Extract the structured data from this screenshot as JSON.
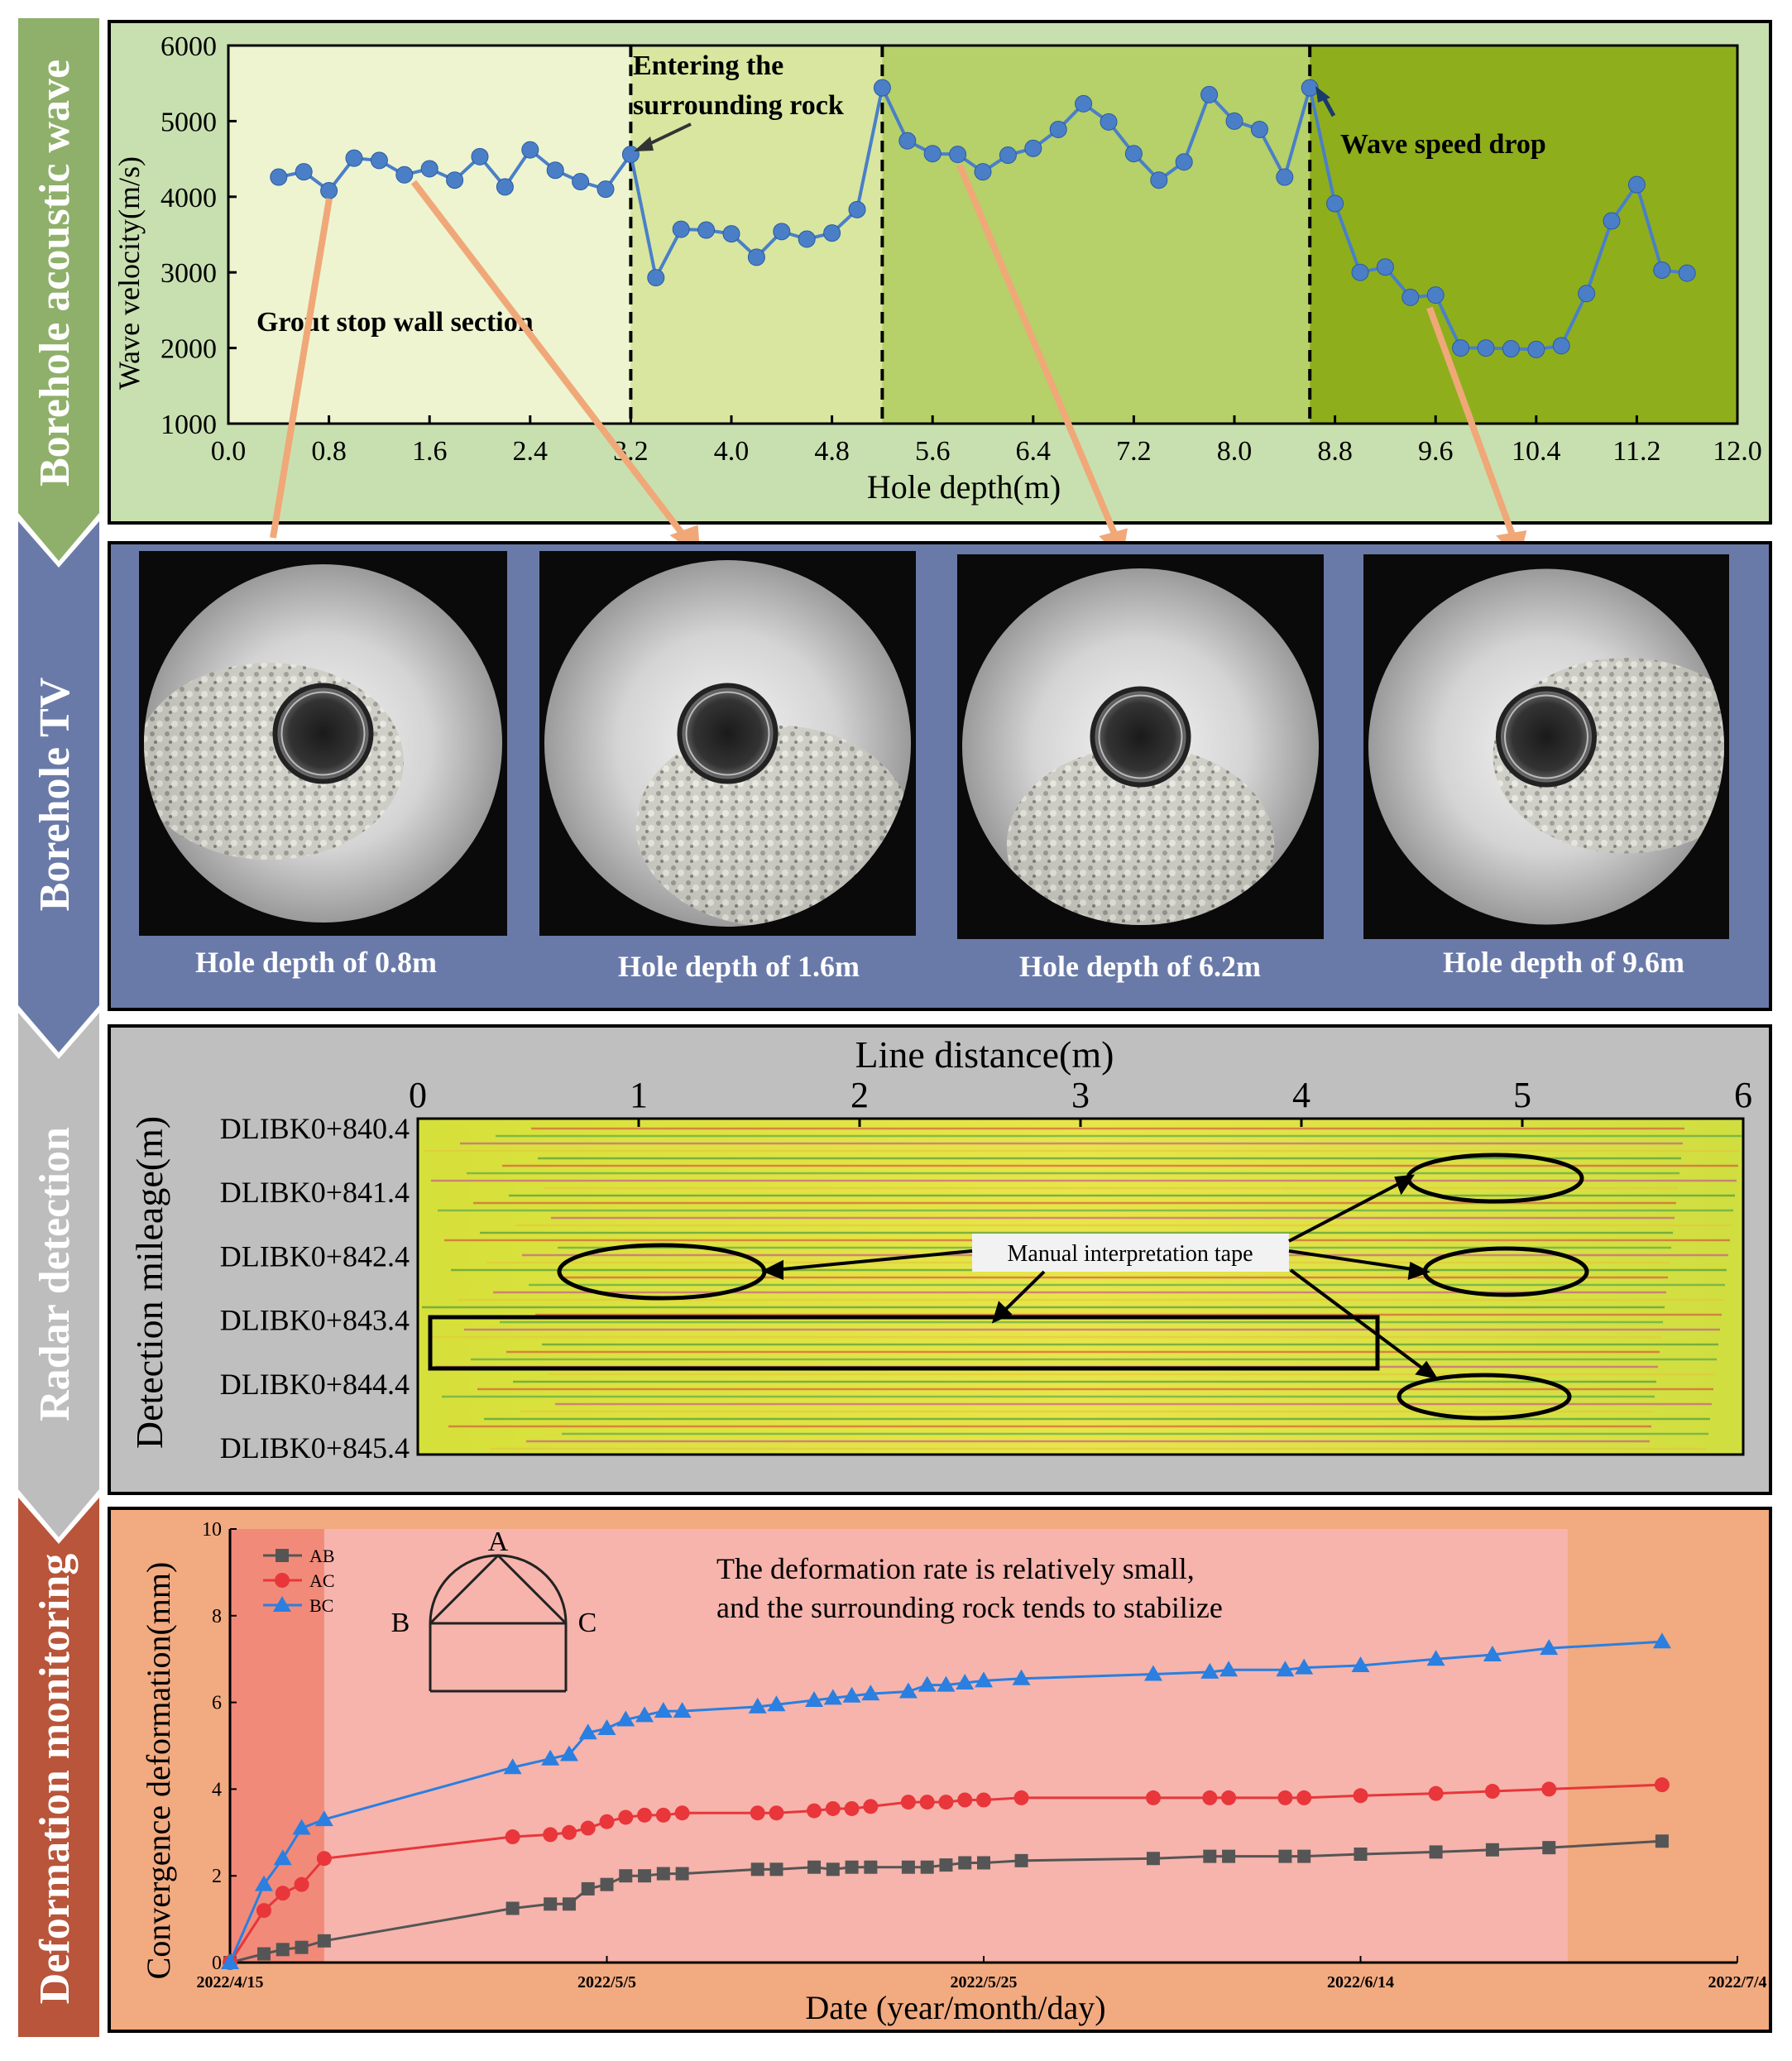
{
  "sections": {
    "s1": {
      "label": "Borehole acoustic wave",
      "color": "#8fb06a"
    },
    "s2": {
      "label": "Borehole TV",
      "color": "#6a7aa8"
    },
    "s3": {
      "label": "Radar detection",
      "color": "#bdbdbd"
    },
    "s4": {
      "label": "Deformation monitoring",
      "color": "#b8553a"
    }
  },
  "acoustic": {
    "ylabel": "Wave velocity(m/s)",
    "xlabel": "Hole depth(m)",
    "annotations": {
      "grout": "Grout stop wall section",
      "entering_1": "Entering the",
      "entering_2": "surrounding rock",
      "drop": "Wave speed drop"
    }
  },
  "tv": {
    "captions": [
      "Hole depth of 0.8m",
      "Hole depth of 1.6m",
      "Hole depth of 6.2m",
      "Hole depth of 9.6m"
    ]
  },
  "radar": {
    "title": "Line distance(m)",
    "ylabel": "Detection mileage(m)",
    "xticks": [
      "0",
      "1",
      "2",
      "3",
      "4",
      "5",
      "6"
    ],
    "yticks": [
      "DLIBK0+840.4",
      "DLIBK0+841.4",
      "DLIBK0+842.4",
      "DLIBK0+843.4",
      "DLIBK0+844.4",
      "DLIBK0+845.4"
    ],
    "callout": "Manual interpretation tape"
  },
  "deformation": {
    "ylabel": "Convergence deformation(mm)",
    "xlabel": "Date (year/month/day)",
    "note_1": "The deformation rate is relatively small,",
    "note_2": "and the surrounding rock tends to stabilize",
    "diagram": {
      "A": "A",
      "B": "B",
      "C": "C"
    }
  },
  "chart_data": [
    {
      "type": "line",
      "title": "Borehole acoustic wave",
      "xlabel": "Hole depth(m)",
      "ylabel": "Wave velocity(m/s)",
      "xlim": [
        0,
        12
      ],
      "ylim": [
        1000,
        6000
      ],
      "xticks": [
        "0.0",
        "0.8",
        "1.6",
        "2.4",
        "3.2",
        "4.0",
        "4.8",
        "5.6",
        "6.4",
        "7.2",
        "8.0",
        "8.8",
        "9.6",
        "10.4",
        "11.2",
        "12.0"
      ],
      "yticks": [
        "1000",
        "2000",
        "3000",
        "4000",
        "5000",
        "6000"
      ],
      "zones": [
        {
          "x0": 0.0,
          "x1": 3.2,
          "color": "#eef4d0"
        },
        {
          "x0": 3.2,
          "x1": 5.2,
          "color": "#d8e6a0"
        },
        {
          "x0": 5.2,
          "x1": 8.6,
          "color": "#b6d06a"
        },
        {
          "x0": 8.6,
          "x1": 12.0,
          "color": "#8fae1c"
        }
      ],
      "dividers": [
        3.2,
        5.2,
        8.6
      ],
      "series": [
        {
          "name": "Wave velocity",
          "color": "#4a7fc8",
          "x": [
            0.4,
            0.6,
            0.8,
            1.0,
            1.2,
            1.4,
            1.6,
            1.8,
            2.0,
            2.2,
            2.4,
            2.6,
            2.8,
            3.0,
            3.2,
            3.4,
            3.6,
            3.8,
            4.0,
            4.2,
            4.4,
            4.6,
            4.8,
            5.0,
            5.2,
            5.4,
            5.6,
            5.8,
            6.0,
            6.2,
            6.4,
            6.6,
            6.8,
            7.0,
            7.2,
            7.4,
            7.6,
            7.8,
            8.0,
            8.2,
            8.4,
            8.6,
            8.8,
            9.0,
            9.2,
            9.4,
            9.6,
            9.8,
            10.0,
            10.2,
            10.4,
            10.6,
            10.8,
            11.0,
            11.2,
            11.4,
            11.6
          ],
          "y": [
            4260,
            4330,
            4080,
            4510,
            4480,
            4290,
            4370,
            4220,
            4530,
            4130,
            4620,
            4350,
            4200,
            4100,
            4560,
            2930,
            3570,
            3560,
            3510,
            3200,
            3540,
            3440,
            3520,
            3830,
            5440,
            4740,
            4570,
            4560,
            4330,
            4550,
            4640,
            4890,
            5230,
            4990,
            4570,
            4220,
            4460,
            5350,
            5000,
            4890,
            4260,
            5440,
            3910,
            3000,
            3070,
            2670,
            2700,
            2000,
            2000,
            1990,
            1980,
            2030,
            2720,
            3680,
            4160,
            3030,
            2990
          ]
        }
      ]
    },
    {
      "type": "heatmap",
      "title": "Line distance(m)",
      "ylabel": "Detection mileage(m)",
      "xlim": [
        0,
        6
      ],
      "xticks": [
        "0",
        "1",
        "2",
        "3",
        "4",
        "5",
        "6"
      ],
      "yticks": [
        "DLIBK0+840.4",
        "DLIBK0+841.4",
        "DLIBK0+842.4",
        "DLIBK0+843.4",
        "DLIBK0+844.4",
        "DLIBK0+845.4"
      ],
      "annotations": [
        "Manual interpretation tape"
      ]
    },
    {
      "type": "line",
      "title": "Deformation monitoring",
      "xlabel": "Date (year/month/day)",
      "ylabel": "Convergence deformation(mm)",
      "xlim": [
        0,
        80
      ],
      "ylim": [
        0,
        10
      ],
      "xticks": [
        "2022/4/15",
        "2022/5/5",
        "2022/5/25",
        "2022/6/14",
        "2022/7/4"
      ],
      "xtick_days": [
        0,
        20,
        40,
        60,
        80
      ],
      "yticks": [
        "0",
        "2",
        "4",
        "6",
        "8",
        "10"
      ],
      "highlight_days": [
        0,
        5
      ],
      "series": [
        {
          "name": "AB",
          "color": "#555555",
          "marker": "square",
          "x": [
            0,
            1.8,
            2.8,
            3.8,
            5,
            15,
            17,
            18,
            19,
            20,
            21,
            22,
            23,
            24,
            28,
            29,
            31,
            32,
            33,
            34,
            36,
            37,
            38,
            39,
            40,
            42,
            49,
            52,
            53,
            56,
            57,
            60,
            64,
            67,
            70,
            76
          ],
          "y": [
            0,
            0.2,
            0.3,
            0.35,
            0.5,
            1.25,
            1.35,
            1.35,
            1.7,
            1.8,
            2.0,
            2.0,
            2.05,
            2.05,
            2.15,
            2.15,
            2.2,
            2.15,
            2.2,
            2.2,
            2.2,
            2.2,
            2.25,
            2.3,
            2.3,
            2.35,
            2.4,
            2.45,
            2.45,
            2.45,
            2.45,
            2.5,
            2.55,
            2.6,
            2.65,
            2.8
          ]
        },
        {
          "name": "AC",
          "color": "#e8363a",
          "marker": "circle",
          "x": [
            0,
            1.8,
            2.8,
            3.8,
            5,
            15,
            17,
            18,
            19,
            20,
            21,
            22,
            23,
            24,
            28,
            29,
            31,
            32,
            33,
            34,
            36,
            37,
            38,
            39,
            40,
            42,
            49,
            52,
            53,
            56,
            57,
            60,
            64,
            67,
            70,
            76
          ],
          "y": [
            0,
            1.2,
            1.6,
            1.8,
            2.4,
            2.9,
            2.95,
            3.0,
            3.1,
            3.25,
            3.35,
            3.4,
            3.4,
            3.45,
            3.45,
            3.45,
            3.5,
            3.55,
            3.55,
            3.6,
            3.7,
            3.7,
            3.7,
            3.75,
            3.75,
            3.8,
            3.8,
            3.8,
            3.8,
            3.8,
            3.8,
            3.85,
            3.9,
            3.95,
            4.0,
            4.1
          ]
        },
        {
          "name": "BC",
          "color": "#2a7fe0",
          "marker": "triangle",
          "x": [
            0,
            1.8,
            2.8,
            3.8,
            5,
            15,
            17,
            18,
            19,
            20,
            21,
            22,
            23,
            24,
            28,
            29,
            31,
            32,
            33,
            34,
            36,
            37,
            38,
            39,
            40,
            42,
            49,
            52,
            53,
            56,
            57,
            60,
            64,
            67,
            70,
            76
          ],
          "y": [
            0,
            1.8,
            2.4,
            3.1,
            3.3,
            4.5,
            4.7,
            4.8,
            5.3,
            5.4,
            5.6,
            5.7,
            5.8,
            5.8,
            5.9,
            5.95,
            6.05,
            6.1,
            6.15,
            6.2,
            6.25,
            6.4,
            6.4,
            6.45,
            6.5,
            6.55,
            6.65,
            6.7,
            6.75,
            6.75,
            6.8,
            6.85,
            7.0,
            7.1,
            7.25,
            7.4
          ]
        }
      ]
    }
  ]
}
